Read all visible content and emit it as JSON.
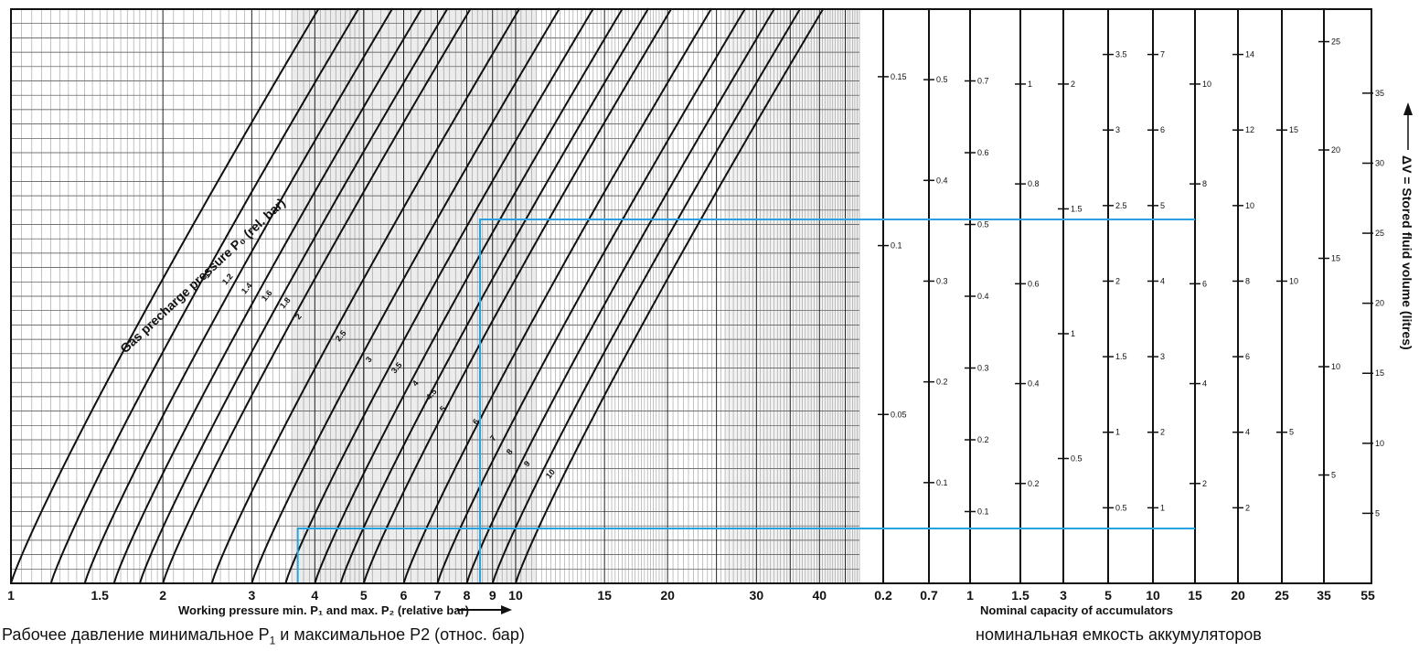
{
  "chart_data": {
    "type": "line",
    "title": "",
    "x_axis": {
      "scale": "log",
      "range": [
        1,
        48
      ],
      "tick_labels": [
        "1",
        "1.5",
        "2",
        "3",
        "4",
        "5",
        "6",
        "7",
        "8",
        "9",
        "10",
        "15",
        "20",
        "30",
        "40"
      ],
      "label": "Working pressure min. P₁ and max. P₂  (relative bar)"
    },
    "curve_family_label": "Gas precharge pressure P₀ (rel. bar)",
    "series": [
      {
        "name": "1",
        "p0": 1
      },
      {
        "name": "1.2",
        "p0": 1.2
      },
      {
        "name": "1.4",
        "p0": 1.4
      },
      {
        "name": "1.6",
        "p0": 1.6
      },
      {
        "name": "1.8",
        "p0": 1.8
      },
      {
        "name": "2",
        "p0": 2
      },
      {
        "name": "2.5",
        "p0": 2.5
      },
      {
        "name": "3",
        "p0": 3
      },
      {
        "name": "3.5",
        "p0": 3.5
      },
      {
        "name": "4",
        "p0": 4
      },
      {
        "name": "4.5",
        "p0": 4.5
      },
      {
        "name": "5",
        "p0": 5
      },
      {
        "name": "6",
        "p0": 6
      },
      {
        "name": "7",
        "p0": 7
      },
      {
        "name": "8",
        "p0": 8
      },
      {
        "name": "9",
        "p0": 9
      },
      {
        "name": "10",
        "p0": 10
      }
    ],
    "capacity_axis": {
      "label": "Nominal capacity of accumulators",
      "bottom_labels": [
        "0.2",
        "0.7",
        "1",
        "1.5",
        "3",
        "5",
        "10",
        "15",
        "20",
        "25",
        "35",
        "55"
      ],
      "scales": [
        {
          "capacity": "0.2",
          "ticks": [
            "0.15",
            "0.1",
            "0.05"
          ]
        },
        {
          "capacity": "0.7",
          "ticks": [
            "0.5",
            "0.4",
            "0.3",
            "0.2",
            "0.1"
          ]
        },
        {
          "capacity": "1",
          "ticks": [
            "0.7",
            "0.6",
            "0.5",
            "0.4",
            "0.3",
            "0.2",
            "0.1"
          ]
        },
        {
          "capacity": "1.5",
          "ticks": [
            "1",
            "0.8",
            "0.6",
            "0.4",
            "0.2"
          ]
        },
        {
          "capacity": "3",
          "ticks": [
            "2",
            "1.5",
            "1",
            "0.5"
          ]
        },
        {
          "capacity": "5",
          "ticks": [
            "3.5",
            "3",
            "2.5",
            "2",
            "1.5",
            "1",
            "0.5"
          ]
        },
        {
          "capacity": "10",
          "ticks": [
            "7",
            "6",
            "5",
            "4",
            "3",
            "2",
            "1"
          ]
        },
        {
          "capacity": "15",
          "ticks": [
            "10",
            "8",
            "6",
            "4",
            "2"
          ]
        },
        {
          "capacity": "20",
          "ticks": [
            "14",
            "12",
            "10",
            "8",
            "6",
            "4",
            "2"
          ]
        },
        {
          "capacity": "25",
          "ticks": [
            "15",
            "10",
            "5"
          ]
        },
        {
          "capacity": "35",
          "ticks": [
            "25",
            "20",
            "15",
            "10",
            "5"
          ]
        },
        {
          "capacity": "55",
          "ticks": [
            "35",
            "30",
            "25",
            "20",
            "15",
            "10",
            "5"
          ]
        }
      ]
    },
    "right_axis_label": "ΔV = Stored fluid volume (litres)",
    "example_lines": {
      "color": "#29a3e0",
      "p1": 3.7,
      "p2": 8.5,
      "capacity": "15"
    },
    "grid": true
  },
  "captions": {
    "left": "Рабочее давление минимальное P",
    "left_sub": "1",
    "left_rest": " и максимальное P2 (относ. бар)",
    "right": "номинальная емкость аккумуляторов"
  }
}
